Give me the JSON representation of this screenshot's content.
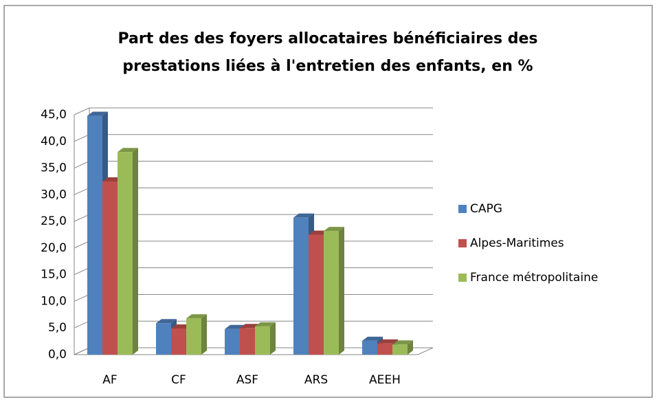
{
  "chart_data": {
    "type": "bar3d",
    "title": [
      "Part des des foyers allocataires bénéficiaires des",
      "prestations  liées à l'entretien des enfants, en %"
    ],
    "categories": [
      "AF",
      "CF",
      "ASF",
      "ARS",
      "AEEH"
    ],
    "series": [
      {
        "name": "CAPG",
        "color": "#4f81bd",
        "values": [
          44.8,
          5.9,
          4.8,
          25.7,
          2.6
        ]
      },
      {
        "name": "Alpes-Maritimes",
        "color": "#c0504d",
        "values": [
          32.5,
          4.9,
          5.0,
          22.5,
          2.1
        ]
      },
      {
        "name": "France métropolitaine",
        "color": "#9bbb59",
        "values": [
          38.0,
          6.8,
          5.3,
          23.2,
          1.9
        ]
      }
    ],
    "ylim": [
      0,
      45
    ],
    "yticks": [
      {
        "value": 0,
        "label": "0,0"
      },
      {
        "value": 5,
        "label": "5,0"
      },
      {
        "value": 10,
        "label": "10,0"
      },
      {
        "value": 15,
        "label": "15,0"
      },
      {
        "value": 20,
        "label": "20,0"
      },
      {
        "value": 25,
        "label": "25,0"
      },
      {
        "value": 30,
        "label": "30,0"
      },
      {
        "value": 35,
        "label": "35,0"
      },
      {
        "value": 40,
        "label": "40,0"
      },
      {
        "value": 45,
        "label": "45,0"
      }
    ],
    "grid": true,
    "legend": "right"
  }
}
